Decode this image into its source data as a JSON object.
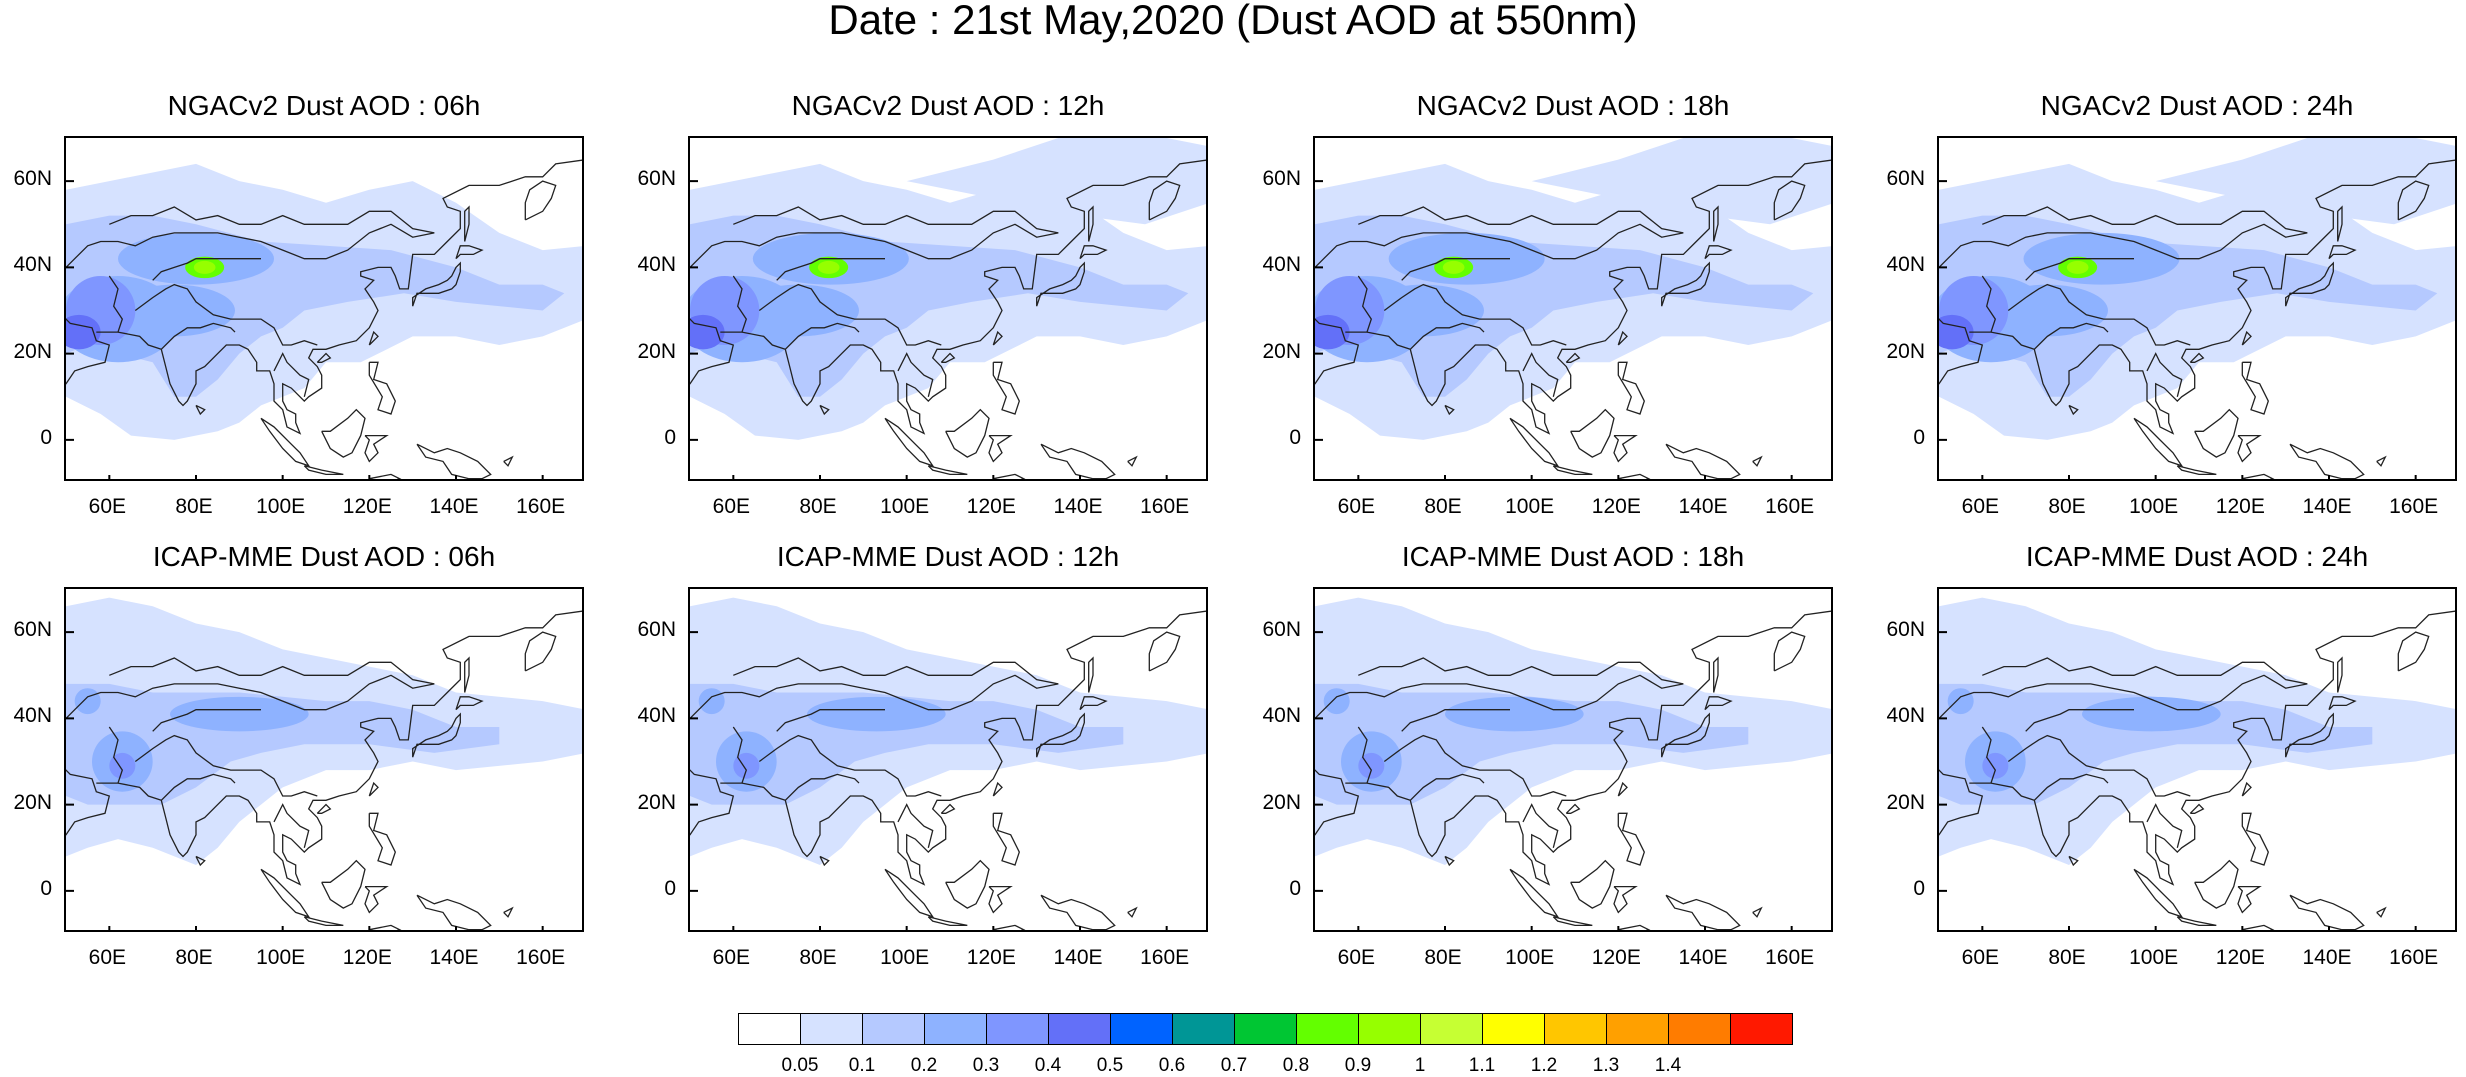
{
  "title": "Date : 21st May,2020 (Dust AOD at 550nm)",
  "panels": [
    {
      "title": "NGACv2 Dust AOD : 06h",
      "model": "NGACv2",
      "hour": "06h"
    },
    {
      "title": "NGACv2 Dust AOD : 12h",
      "model": "NGACv2",
      "hour": "12h"
    },
    {
      "title": "NGACv2 Dust AOD : 18h",
      "model": "NGACv2",
      "hour": "18h"
    },
    {
      "title": "NGACv2 Dust AOD : 24h",
      "model": "NGACv2",
      "hour": "24h"
    },
    {
      "title": "ICAP-MME Dust AOD : 06h",
      "model": "ICAP-MME",
      "hour": "06h"
    },
    {
      "title": "ICAP-MME Dust AOD : 12h",
      "model": "ICAP-MME",
      "hour": "12h"
    },
    {
      "title": "ICAP-MME Dust AOD : 18h",
      "model": "ICAP-MME",
      "hour": "18h"
    },
    {
      "title": "ICAP-MME Dust AOD : 24h",
      "model": "ICAP-MME",
      "hour": "24h"
    }
  ],
  "map_extent": {
    "lon_min": 50,
    "lon_max": 170,
    "lat_min": -10,
    "lat_max": 70
  },
  "lat_ticks": [
    "60N",
    "40N",
    "20N",
    "0"
  ],
  "lon_ticks": [
    "60E",
    "80E",
    "100E",
    "120E",
    "140E",
    "160E"
  ],
  "colorbar": {
    "labels": [
      "0.05",
      "0.1",
      "0.2",
      "0.3",
      "0.4",
      "0.5",
      "0.6",
      "0.7",
      "0.8",
      "0.9",
      "1",
      "1.1",
      "1.2",
      "1.3",
      "1.4"
    ],
    "colors": [
      "#ffffff",
      "#d6e2ff",
      "#b5c9ff",
      "#8eb2ff",
      "#7f96ff",
      "#6370f8",
      "#0063ff",
      "#009696",
      "#00c633",
      "#63ff00",
      "#96ff00",
      "#c6ff33",
      "#ffff00",
      "#ffc600",
      "#ffa000",
      "#ff7c00",
      "#ff1900"
    ]
  }
}
